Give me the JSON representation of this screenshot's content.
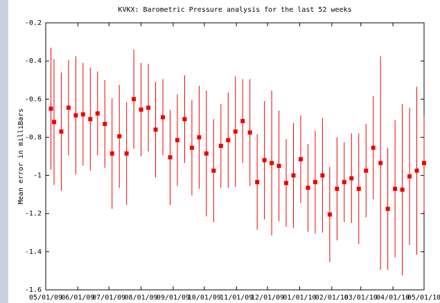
{
  "chart_data": {
    "type": "errorbar",
    "title": "KVKX: Barometric Pressure analysis for the last 52 weeks",
    "ylabel": "Mean error in milliBars",
    "color": "#ee0000",
    "xlim": [
      0,
      365
    ],
    "xticks": [
      {
        "value": 0,
        "label": "05/01/09"
      },
      {
        "value": 31,
        "label": "06/01/09"
      },
      {
        "value": 61,
        "label": "07/01/09"
      },
      {
        "value": 92,
        "label": "08/01/09"
      },
      {
        "value": 123,
        "label": "09/01/09"
      },
      {
        "value": 153,
        "label": "10/01/09"
      },
      {
        "value": 184,
        "label": "11/01/09"
      },
      {
        "value": 214,
        "label": "12/01/09"
      },
      {
        "value": 245,
        "label": "01/01/10"
      },
      {
        "value": 276,
        "label": "02/01/10"
      },
      {
        "value": 304,
        "label": "03/01/10"
      },
      {
        "value": 335,
        "label": "04/01/10"
      },
      {
        "value": 365,
        "label": "05/01/10"
      }
    ],
    "ylim": [
      -1.6,
      -0.2
    ],
    "yticks": [
      -1.6,
      -1.4,
      -1.2,
      -1,
      -0.8,
      -0.6,
      -0.4,
      -0.2
    ],
    "x": [
      5,
      8,
      15,
      22,
      29,
      36,
      43,
      50,
      57,
      64,
      71,
      78,
      85,
      92,
      99,
      106,
      113,
      120,
      127,
      134,
      141,
      148,
      155,
      162,
      169,
      176,
      183,
      190,
      197,
      204,
      211,
      218,
      225,
      232,
      239,
      246,
      253,
      260,
      267,
      274,
      281,
      288,
      295,
      302,
      309,
      316,
      323,
      330,
      337,
      344,
      351,
      358,
      365
    ],
    "values": [
      -0.65,
      -0.72,
      -0.77,
      -0.645,
      -0.685,
      -0.68,
      -0.705,
      -0.675,
      -0.73,
      -0.885,
      -0.795,
      -0.885,
      -0.6,
      -0.655,
      -0.645,
      -0.76,
      -0.695,
      -0.905,
      -0.815,
      -0.705,
      -0.855,
      -0.8,
      -0.885,
      -0.975,
      -0.845,
      -0.815,
      -0.77,
      -0.715,
      -0.775,
      -1.035,
      -0.92,
      -0.935,
      -0.95,
      -1.04,
      -1.0,
      -0.915,
      -1.065,
      -1.035,
      -1.0,
      -1.205,
      -1.07,
      -1.035,
      -1.015,
      -1.07,
      -0.975,
      -0.855,
      -0.935,
      -1.175,
      -1.07,
      -1.075,
      -1.005,
      -0.975,
      -0.935
    ],
    "errors": [
      0.32,
      0.33,
      0.31,
      0.25,
      0.31,
      0.27,
      0.27,
      0.22,
      0.23,
      0.29,
      0.27,
      0.27,
      0.26,
      0.245,
      0.23,
      0.25,
      0.2,
      0.25,
      0.24,
      0.23,
      0.25,
      0.27,
      0.33,
      0.27,
      0.22,
      0.25,
      0.29,
      0.22,
      0.28,
      0.25,
      0.31,
      0.38,
      0.29,
      0.23,
      0.275,
      0.23,
      0.23,
      0.27,
      0.3,
      0.25,
      0.27,
      0.21,
      0.235,
      0.29,
      0.245,
      0.27,
      0.56,
      0.32,
      0.36,
      0.45,
      0.36,
      0.44,
      0.25
    ]
  }
}
